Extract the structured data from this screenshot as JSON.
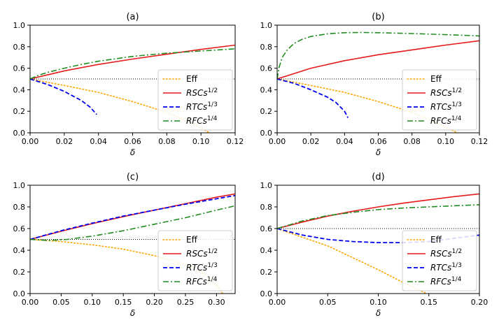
{
  "chart_data": [
    {
      "type": "line",
      "title": "(a)",
      "xlabel": "δ",
      "ylabel": "",
      "xlim": [
        0,
        0.12
      ],
      "ylim": [
        0,
        1.0
      ],
      "xticks": [
        "0.00",
        "0.02",
        "0.04",
        "0.06",
        "0.08",
        "0.10",
        "0.12"
      ],
      "yticks": [
        "0.0",
        "0.2",
        "0.4",
        "0.6",
        "0.8",
        "1.0"
      ],
      "reference_line": 0.5,
      "legend_position": "lower-right",
      "series": [
        {
          "name": "Eff",
          "key": "eff",
          "x": [
            0,
            0.02,
            0.04,
            0.06,
            0.08,
            0.095,
            0.105
          ],
          "y": [
            0.5,
            0.44,
            0.375,
            0.29,
            0.19,
            0.09,
            0.0
          ]
        },
        {
          "name": "RSCs",
          "sup": "1/2",
          "key": "rsc",
          "x": [
            0,
            0.02,
            0.04,
            0.06,
            0.08,
            0.1,
            0.12
          ],
          "y": [
            0.5,
            0.575,
            0.635,
            0.685,
            0.73,
            0.775,
            0.815
          ]
        },
        {
          "name": "RTCs",
          "sup": "1/3",
          "key": "rtc",
          "x": [
            0,
            0.01,
            0.02,
            0.03,
            0.035,
            0.039
          ],
          "y": [
            0.5,
            0.45,
            0.385,
            0.3,
            0.24,
            0.17
          ]
        },
        {
          "name": "RFCs",
          "sup": "1/4",
          "key": "rfc",
          "x": [
            0,
            0.005,
            0.01,
            0.02,
            0.03,
            0.04,
            0.06,
            0.08,
            0.1,
            0.12
          ],
          "y": [
            0.5,
            0.535,
            0.56,
            0.6,
            0.635,
            0.665,
            0.71,
            0.74,
            0.76,
            0.78
          ]
        }
      ]
    },
    {
      "type": "line",
      "title": "(b)",
      "xlabel": "δ",
      "ylabel": "",
      "xlim": [
        0,
        0.12
      ],
      "ylim": [
        0,
        1.0
      ],
      "xticks": [
        "0.00",
        "0.02",
        "0.04",
        "0.06",
        "0.08",
        "0.10",
        "0.12"
      ],
      "yticks": [
        "0.0",
        "0.2",
        "0.4",
        "0.6",
        "0.8",
        "1.0"
      ],
      "reference_line": 0.5,
      "legend_position": "lower-right",
      "series": [
        {
          "name": "Eff",
          "key": "eff",
          "x": [
            0,
            0.02,
            0.04,
            0.06,
            0.08,
            0.095,
            0.107
          ],
          "y": [
            0.5,
            0.44,
            0.375,
            0.29,
            0.19,
            0.09,
            0.0
          ]
        },
        {
          "name": "RSCs",
          "sup": "1/2",
          "key": "rsc",
          "x": [
            0,
            0.02,
            0.04,
            0.06,
            0.08,
            0.1,
            0.12
          ],
          "y": [
            0.5,
            0.6,
            0.67,
            0.725,
            0.77,
            0.815,
            0.855
          ]
        },
        {
          "name": "RTCs",
          "sup": "1/3",
          "key": "rtc",
          "x": [
            0,
            0.01,
            0.02,
            0.03,
            0.035,
            0.04,
            0.042
          ],
          "y": [
            0.5,
            0.46,
            0.4,
            0.33,
            0.28,
            0.2,
            0.14
          ]
        },
        {
          "name": "RFCs",
          "sup": "1/4",
          "key": "rfc",
          "x": [
            0,
            0.001,
            0.003,
            0.006,
            0.01,
            0.015,
            0.02,
            0.03,
            0.04,
            0.05,
            0.06,
            0.08,
            0.1,
            0.12
          ],
          "y": [
            0.5,
            0.6,
            0.7,
            0.77,
            0.83,
            0.87,
            0.895,
            0.92,
            0.93,
            0.932,
            0.93,
            0.922,
            0.912,
            0.9
          ]
        }
      ]
    },
    {
      "type": "line",
      "title": "(c)",
      "xlabel": "δ",
      "ylabel": "",
      "xlim": [
        0,
        0.33
      ],
      "ylim": [
        0,
        1.0
      ],
      "xticks": [
        "0.00",
        "0.05",
        "0.10",
        "0.15",
        "0.20",
        "0.25",
        "0.30"
      ],
      "yticks": [
        "0.0",
        "0.2",
        "0.4",
        "0.6",
        "0.8",
        "1.0"
      ],
      "reference_line": 0.5,
      "legend_position": "lower-right",
      "series": [
        {
          "name": "Eff",
          "key": "eff",
          "x": [
            0,
            0.05,
            0.1,
            0.15,
            0.2,
            0.25,
            0.28,
            0.3,
            0.31
          ],
          "y": [
            0.5,
            0.48,
            0.45,
            0.41,
            0.35,
            0.27,
            0.18,
            0.08,
            0.0
          ]
        },
        {
          "name": "RSCs",
          "sup": "1/2",
          "key": "rsc",
          "x": [
            0,
            0.05,
            0.1,
            0.15,
            0.2,
            0.25,
            0.3,
            0.33
          ],
          "y": [
            0.5,
            0.575,
            0.645,
            0.71,
            0.77,
            0.83,
            0.89,
            0.92
          ]
        },
        {
          "name": "RTCs",
          "sup": "1/3",
          "key": "rtc",
          "x": [
            0,
            0.05,
            0.1,
            0.15,
            0.2,
            0.25,
            0.3,
            0.33
          ],
          "y": [
            0.5,
            0.58,
            0.65,
            0.715,
            0.77,
            0.825,
            0.875,
            0.905
          ]
        },
        {
          "name": "RFCs",
          "sup": "1/4",
          "key": "rfc",
          "x": [
            0,
            0.03,
            0.06,
            0.1,
            0.15,
            0.2,
            0.25,
            0.3,
            0.33
          ],
          "y": [
            0.5,
            0.49,
            0.5,
            0.53,
            0.58,
            0.64,
            0.7,
            0.77,
            0.81
          ]
        }
      ]
    },
    {
      "type": "line",
      "title": "(d)",
      "xlabel": "δ",
      "ylabel": "",
      "xlim": [
        0,
        0.2
      ],
      "ylim": [
        0,
        1.0
      ],
      "xticks": [
        "0.00",
        "0.05",
        "0.10",
        "0.15",
        "0.20"
      ],
      "yticks": [
        "0.0",
        "0.2",
        "0.4",
        "0.6",
        "0.8",
        "1.0"
      ],
      "reference_line": 0.6,
      "legend_position": "lower-right",
      "series": [
        {
          "name": "Eff",
          "key": "eff",
          "x": [
            0,
            0.025,
            0.05,
            0.075,
            0.1,
            0.125,
            0.148
          ],
          "y": [
            0.6,
            0.52,
            0.44,
            0.33,
            0.22,
            0.1,
            0.0
          ]
        },
        {
          "name": "RSCs",
          "sup": "1/2",
          "key": "rsc",
          "x": [
            0,
            0.025,
            0.05,
            0.075,
            0.1,
            0.125,
            0.15,
            0.175,
            0.2
          ],
          "y": [
            0.6,
            0.66,
            0.715,
            0.76,
            0.8,
            0.835,
            0.865,
            0.895,
            0.92
          ]
        },
        {
          "name": "RTCs",
          "sup": "1/3",
          "key": "rtc",
          "x": [
            0,
            0.025,
            0.05,
            0.075,
            0.1,
            0.125,
            0.15,
            0.175,
            0.2
          ],
          "y": [
            0.6,
            0.54,
            0.5,
            0.48,
            0.47,
            0.47,
            0.48,
            0.51,
            0.54
          ]
        },
        {
          "name": "RFCs",
          "sup": "1/4",
          "key": "rfc",
          "x": [
            0,
            0.025,
            0.05,
            0.075,
            0.1,
            0.125,
            0.15,
            0.175,
            0.2
          ],
          "y": [
            0.6,
            0.67,
            0.72,
            0.75,
            0.775,
            0.79,
            0.8,
            0.81,
            0.82
          ]
        }
      ]
    }
  ],
  "colors": {
    "eff": "#ffa500",
    "rsc": "#e41a1c",
    "rtc": "#0000ee",
    "rfc": "#228b22",
    "reference": "#000000",
    "axis": "#000000"
  }
}
